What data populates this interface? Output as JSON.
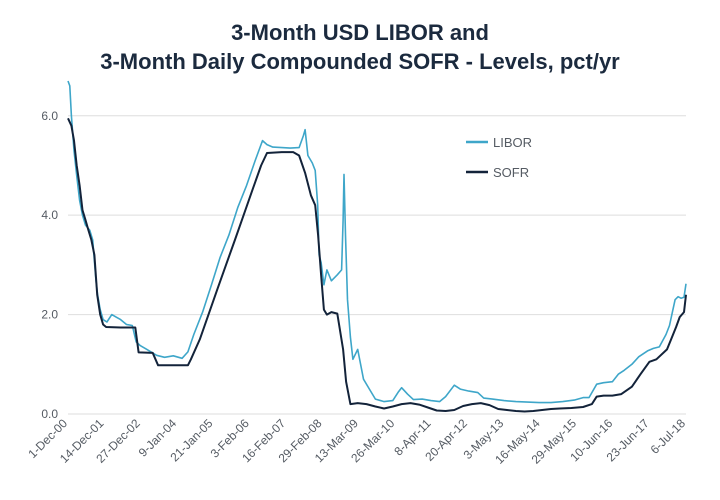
{
  "chart_data": {
    "type": "line",
    "title": [
      "3-Month USD LIBOR and",
      "3-Month Daily Compounded SOFR - Levels, pct/yr"
    ],
    "xlabel": "",
    "ylabel": "",
    "ylim": [
      0,
      6.8
    ],
    "yticks": [
      0.0,
      2.0,
      4.0,
      6.0
    ],
    "ytick_labels": [
      "0.0",
      "2.0",
      "4.0",
      "6.0"
    ],
    "x_range": [
      "2000-12-01",
      "2018-07-06"
    ],
    "xticks": [
      {
        "date": "2000-12-01",
        "label": "1-Dec-00"
      },
      {
        "date": "2001-12-14",
        "label": "14-Dec-01"
      },
      {
        "date": "2002-12-27",
        "label": "27-Dec-02"
      },
      {
        "date": "2004-01-09",
        "label": "9-Jan-04"
      },
      {
        "date": "2005-01-21",
        "label": "21-Jan-05"
      },
      {
        "date": "2006-02-03",
        "label": "3-Feb-06"
      },
      {
        "date": "2007-02-16",
        "label": "16-Feb-07"
      },
      {
        "date": "2008-02-29",
        "label": "29-Feb-08"
      },
      {
        "date": "2009-03-13",
        "label": "13-Mar-09"
      },
      {
        "date": "2010-03-26",
        "label": "26-Mar-10"
      },
      {
        "date": "2011-04-08",
        "label": "8-Apr-11"
      },
      {
        "date": "2012-04-20",
        "label": "20-Apr-12"
      },
      {
        "date": "2013-05-03",
        "label": "3-May-13"
      },
      {
        "date": "2014-05-16",
        "label": "16-May-14"
      },
      {
        "date": "2015-05-29",
        "label": "29-May-15"
      },
      {
        "date": "2016-06-10",
        "label": "10-Jun-16"
      },
      {
        "date": "2017-06-23",
        "label": "23-Jun-17"
      },
      {
        "date": "2018-07-06",
        "label": "6-Jul-18"
      }
    ],
    "grid": "horizontal",
    "legend_position": "top-right",
    "series": [
      {
        "name": "LIBOR",
        "color": "#3ea6c9",
        "points": [
          [
            "2000-12-01",
            6.7
          ],
          [
            "2000-12-20",
            6.6
          ],
          [
            "2001-01-05",
            6.0
          ],
          [
            "2001-02-01",
            5.3
          ],
          [
            "2001-03-01",
            4.8
          ],
          [
            "2001-04-01",
            4.3
          ],
          [
            "2001-05-01",
            4.0
          ],
          [
            "2001-06-01",
            3.8
          ],
          [
            "2001-07-15",
            3.7
          ],
          [
            "2001-08-15",
            3.5
          ],
          [
            "2001-09-17",
            2.7
          ],
          [
            "2001-10-05",
            2.4
          ],
          [
            "2001-11-01",
            2.1
          ],
          [
            "2001-12-01",
            1.9
          ],
          [
            "2002-01-10",
            1.85
          ],
          [
            "2002-03-01",
            2.0
          ],
          [
            "2002-04-15",
            1.95
          ],
          [
            "2002-06-01",
            1.9
          ],
          [
            "2002-08-01",
            1.8
          ],
          [
            "2002-10-01",
            1.78
          ],
          [
            "2002-11-10",
            1.45
          ],
          [
            "2002-12-20",
            1.38
          ],
          [
            "2003-03-01",
            1.3
          ],
          [
            "2003-06-10",
            1.18
          ],
          [
            "2003-09-01",
            1.14
          ],
          [
            "2003-12-01",
            1.17
          ],
          [
            "2004-03-01",
            1.12
          ],
          [
            "2004-05-01",
            1.25
          ],
          [
            "2004-07-01",
            1.6
          ],
          [
            "2004-10-01",
            2.05
          ],
          [
            "2005-01-01",
            2.6
          ],
          [
            "2005-04-01",
            3.15
          ],
          [
            "2005-07-01",
            3.6
          ],
          [
            "2005-10-01",
            4.15
          ],
          [
            "2006-01-01",
            4.6
          ],
          [
            "2006-04-01",
            5.1
          ],
          [
            "2006-06-15",
            5.5
          ],
          [
            "2006-08-01",
            5.42
          ],
          [
            "2006-10-01",
            5.37
          ],
          [
            "2007-01-01",
            5.36
          ],
          [
            "2007-04-01",
            5.35
          ],
          [
            "2007-07-01",
            5.36
          ],
          [
            "2007-08-15",
            5.6
          ],
          [
            "2007-09-01",
            5.72
          ],
          [
            "2007-10-01",
            5.2
          ],
          [
            "2007-11-15",
            5.05
          ],
          [
            "2007-12-15",
            4.9
          ],
          [
            "2008-01-10",
            4.2
          ],
          [
            "2008-01-25",
            3.2
          ],
          [
            "2008-02-15",
            3.05
          ],
          [
            "2008-03-15",
            2.6
          ],
          [
            "2008-04-15",
            2.9
          ],
          [
            "2008-06-01",
            2.68
          ],
          [
            "2008-08-01",
            2.8
          ],
          [
            "2008-09-15",
            2.9
          ],
          [
            "2008-10-01",
            3.9
          ],
          [
            "2008-10-10",
            4.82
          ],
          [
            "2008-10-25",
            3.6
          ],
          [
            "2008-11-15",
            2.3
          ],
          [
            "2008-12-15",
            1.55
          ],
          [
            "2009-01-10",
            1.1
          ],
          [
            "2009-03-01",
            1.3
          ],
          [
            "2009-05-01",
            0.7
          ],
          [
            "2009-07-01",
            0.5
          ],
          [
            "2009-09-01",
            0.3
          ],
          [
            "2009-12-01",
            0.25
          ],
          [
            "2010-03-01",
            0.27
          ],
          [
            "2010-05-01",
            0.45
          ],
          [
            "2010-06-01",
            0.53
          ],
          [
            "2010-08-01",
            0.4
          ],
          [
            "2010-10-01",
            0.29
          ],
          [
            "2011-01-01",
            0.3
          ],
          [
            "2011-04-01",
            0.27
          ],
          [
            "2011-07-01",
            0.25
          ],
          [
            "2011-09-01",
            0.35
          ],
          [
            "2011-12-01",
            0.58
          ],
          [
            "2012-02-01",
            0.5
          ],
          [
            "2012-05-01",
            0.46
          ],
          [
            "2012-08-01",
            0.43
          ],
          [
            "2012-10-01",
            0.32
          ],
          [
            "2013-01-01",
            0.3
          ],
          [
            "2013-05-01",
            0.27
          ],
          [
            "2013-09-01",
            0.25
          ],
          [
            "2014-01-01",
            0.24
          ],
          [
            "2014-05-01",
            0.23
          ],
          [
            "2014-09-01",
            0.23
          ],
          [
            "2015-01-01",
            0.25
          ],
          [
            "2015-05-01",
            0.28
          ],
          [
            "2015-08-01",
            0.33
          ],
          [
            "2015-10-01",
            0.33
          ],
          [
            "2015-12-20",
            0.6
          ],
          [
            "2016-03-01",
            0.63
          ],
          [
            "2016-06-01",
            0.65
          ],
          [
            "2016-08-01",
            0.8
          ],
          [
            "2016-10-01",
            0.88
          ],
          [
            "2016-12-20",
            1.0
          ],
          [
            "2017-03-01",
            1.15
          ],
          [
            "2017-06-01",
            1.27
          ],
          [
            "2017-08-01",
            1.32
          ],
          [
            "2017-10-01",
            1.35
          ],
          [
            "2017-12-10",
            1.6
          ],
          [
            "2018-01-15",
            1.78
          ],
          [
            "2018-02-15",
            2.05
          ],
          [
            "2018-03-15",
            2.3
          ],
          [
            "2018-04-15",
            2.36
          ],
          [
            "2018-05-15",
            2.33
          ],
          [
            "2018-06-15",
            2.35
          ],
          [
            "2018-07-06",
            2.62
          ]
        ]
      },
      {
        "name": "SOFR",
        "color": "#13233a",
        "points": [
          [
            "2000-12-01",
            5.95
          ],
          [
            "2001-01-05",
            5.8
          ],
          [
            "2001-02-01",
            5.5
          ],
          [
            "2001-03-01",
            5.0
          ],
          [
            "2001-04-01",
            4.6
          ],
          [
            "2001-05-01",
            4.1
          ],
          [
            "2001-06-01",
            3.9
          ],
          [
            "2001-07-01",
            3.7
          ],
          [
            "2001-08-01",
            3.5
          ],
          [
            "2001-09-01",
            3.2
          ],
          [
            "2001-10-01",
            2.4
          ],
          [
            "2001-11-01",
            2.0
          ],
          [
            "2001-12-01",
            1.8
          ],
          [
            "2002-01-01",
            1.75
          ],
          [
            "2002-06-01",
            1.74
          ],
          [
            "2002-11-01",
            1.74
          ],
          [
            "2002-12-05",
            1.24
          ],
          [
            "2003-05-01",
            1.23
          ],
          [
            "2003-06-26",
            0.98
          ],
          [
            "2003-12-01",
            0.98
          ],
          [
            "2004-05-01",
            0.98
          ],
          [
            "2004-06-01",
            1.1
          ],
          [
            "2004-09-01",
            1.5
          ],
          [
            "2004-12-01",
            2.0
          ],
          [
            "2005-03-01",
            2.5
          ],
          [
            "2005-06-01",
            3.0
          ],
          [
            "2005-09-01",
            3.5
          ],
          [
            "2005-12-01",
            4.0
          ],
          [
            "2006-03-01",
            4.5
          ],
          [
            "2006-06-01",
            5.0
          ],
          [
            "2006-08-01",
            5.25
          ],
          [
            "2007-01-01",
            5.27
          ],
          [
            "2007-05-01",
            5.27
          ],
          [
            "2007-07-01",
            5.2
          ],
          [
            "2007-09-01",
            4.85
          ],
          [
            "2007-11-01",
            4.4
          ],
          [
            "2007-12-15",
            4.2
          ],
          [
            "2008-01-15",
            3.6
          ],
          [
            "2008-02-15",
            2.8
          ],
          [
            "2008-03-15",
            2.1
          ],
          [
            "2008-04-15",
            2.0
          ],
          [
            "2008-06-01",
            2.05
          ],
          [
            "2008-08-01",
            2.02
          ],
          [
            "2008-10-01",
            1.3
          ],
          [
            "2008-11-01",
            0.65
          ],
          [
            "2008-12-15",
            0.2
          ],
          [
            "2009-03-01",
            0.22
          ],
          [
            "2009-06-01",
            0.2
          ],
          [
            "2009-09-01",
            0.15
          ],
          [
            "2009-12-01",
            0.11
          ],
          [
            "2010-03-01",
            0.15
          ],
          [
            "2010-06-01",
            0.2
          ],
          [
            "2010-09-01",
            0.22
          ],
          [
            "2010-12-01",
            0.19
          ],
          [
            "2011-03-01",
            0.13
          ],
          [
            "2011-06-01",
            0.07
          ],
          [
            "2011-09-01",
            0.06
          ],
          [
            "2011-12-01",
            0.08
          ],
          [
            "2012-03-01",
            0.16
          ],
          [
            "2012-06-01",
            0.2
          ],
          [
            "2012-09-01",
            0.22
          ],
          [
            "2012-12-01",
            0.18
          ],
          [
            "2013-03-01",
            0.1
          ],
          [
            "2013-06-01",
            0.08
          ],
          [
            "2013-09-01",
            0.06
          ],
          [
            "2013-12-01",
            0.05
          ],
          [
            "2014-03-01",
            0.06
          ],
          [
            "2014-06-01",
            0.08
          ],
          [
            "2014-09-01",
            0.1
          ],
          [
            "2014-12-01",
            0.11
          ],
          [
            "2015-04-01",
            0.12
          ],
          [
            "2015-08-01",
            0.14
          ],
          [
            "2015-11-01",
            0.2
          ],
          [
            "2015-12-20",
            0.35
          ],
          [
            "2016-03-01",
            0.37
          ],
          [
            "2016-06-01",
            0.37
          ],
          [
            "2016-09-01",
            0.4
          ],
          [
            "2016-12-20",
            0.55
          ],
          [
            "2017-03-20",
            0.8
          ],
          [
            "2017-06-20",
            1.05
          ],
          [
            "2017-09-01",
            1.1
          ],
          [
            "2017-12-20",
            1.3
          ],
          [
            "2018-02-01",
            1.5
          ],
          [
            "2018-03-25",
            1.75
          ],
          [
            "2018-05-01",
            1.95
          ],
          [
            "2018-06-15",
            2.05
          ],
          [
            "2018-07-06",
            2.4
          ]
        ]
      }
    ]
  }
}
